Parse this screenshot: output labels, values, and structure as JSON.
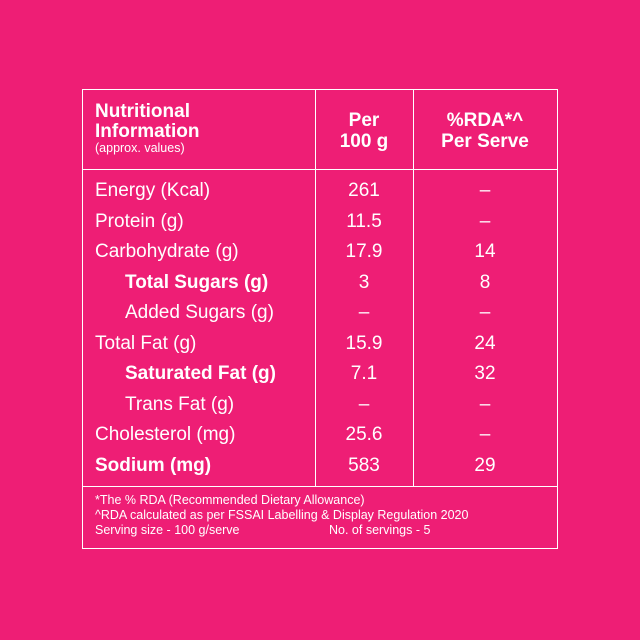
{
  "header": {
    "title_line1": "Nutritional",
    "title_line2": "Information",
    "subtitle": "(approx. values)",
    "col1_line1": "Per",
    "col1_line2": "100 g",
    "col2_line1": "%RDA*^",
    "col2_line2": "Per Serve"
  },
  "rows": [
    {
      "label": "Energy (Kcal)",
      "per100": "261",
      "rda": "–"
    },
    {
      "label": "Protein (g)",
      "per100": "11.5",
      "rda": "–"
    },
    {
      "label": "Carbohydrate (g)",
      "per100": "17.9",
      "rda": "14"
    },
    {
      "label": "Total Sugars (g)",
      "per100": "3",
      "rda": "8"
    },
    {
      "label": "Added Sugars (g)",
      "per100": "–",
      "rda": "–"
    },
    {
      "label": "Total Fat (g)",
      "per100": "15.9",
      "rda": "24"
    },
    {
      "label": "Saturated Fat (g)",
      "per100": "7.1",
      "rda": "32"
    },
    {
      "label": "Trans Fat (g)",
      "per100": "–",
      "rda": "–"
    },
    {
      "label": "Cholesterol (mg)",
      "per100": "25.6",
      "rda": "–"
    },
    {
      "label": "Sodium (mg)",
      "per100": "583",
      "rda": "29"
    }
  ],
  "footnotes": {
    "rda_note": "*The % RDA (Recommended Dietary Allowance)",
    "regulation_note": "^RDA calculated as per FSSAI Labelling & Display Regulation 2020",
    "serving_size": "Serving size - 100 g/serve",
    "servings_count": "No. of servings - 5"
  },
  "colors": {
    "background": "#ee1e75",
    "text": "#ffffff"
  }
}
